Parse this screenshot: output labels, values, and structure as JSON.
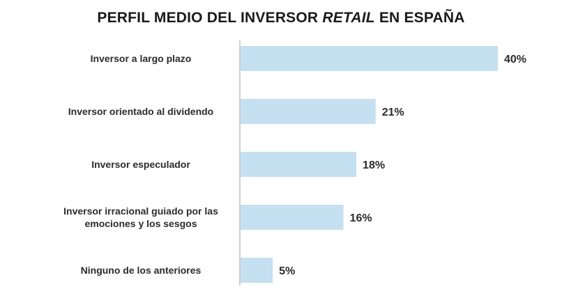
{
  "chart_data": {
    "type": "bar",
    "orientation": "horizontal",
    "title_parts": [
      "PERFIL MEDIO DEL INVERSOR ",
      "RETAIL",
      " EN ESPAÑA"
    ],
    "categories": [
      [
        "Inversor a largo plazo"
      ],
      [
        "Inversor orientado al dividendo"
      ],
      [
        "Inversor especulador"
      ],
      [
        "Inversor irracional guiado por las",
        "emociones y los sesgos"
      ],
      [
        "Ninguno de los anteriores"
      ]
    ],
    "values": [
      40,
      21,
      18,
      16,
      5
    ],
    "value_labels": [
      "40%",
      "21%",
      "18%",
      "16%",
      "5%"
    ],
    "xlim": [
      0,
      40
    ],
    "bar_color": "#c5e0f0",
    "axis_color": "#bdbdbd",
    "grid": false,
    "legend": "none"
  }
}
